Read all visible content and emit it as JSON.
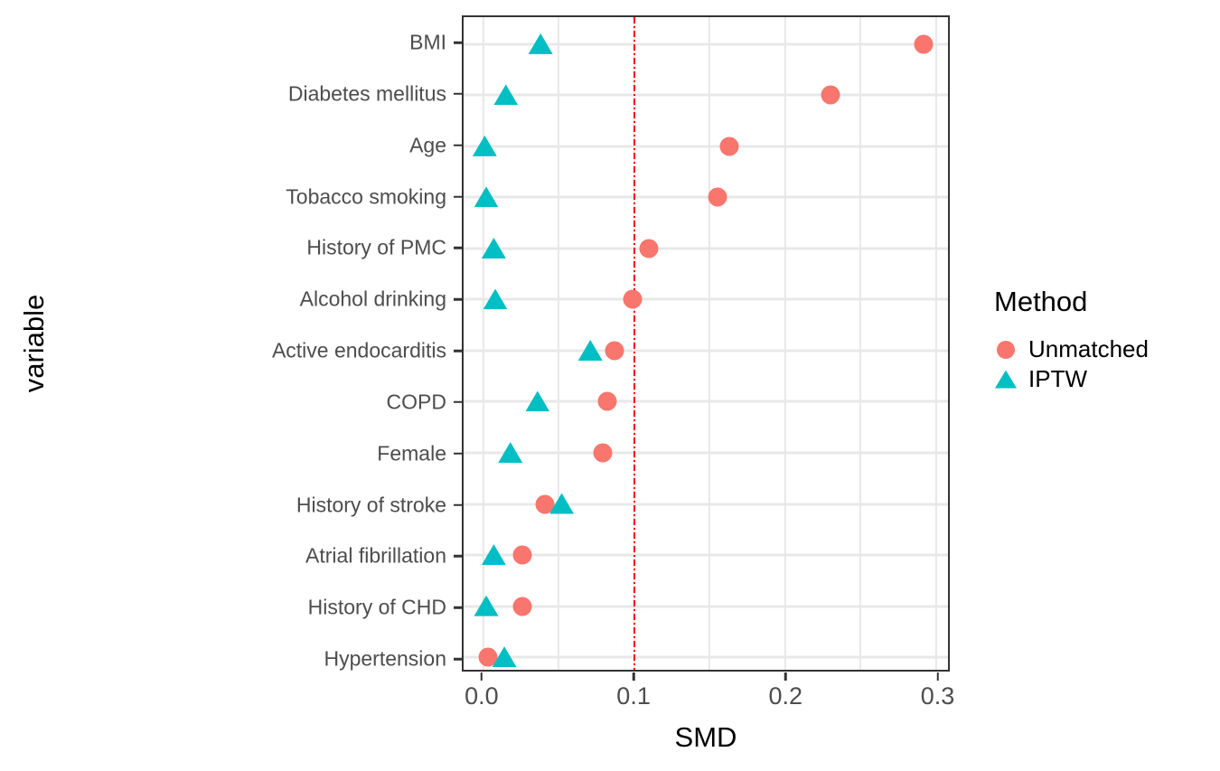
{
  "chart_data": {
    "type": "scatter",
    "variant": "covariate-balance-love-plot",
    "title": "",
    "xlabel": "SMD",
    "ylabel": "variable",
    "xlim": [
      -0.013,
      0.308
    ],
    "x_major_ticks": [
      0.0,
      0.1,
      0.2,
      0.3
    ],
    "x_tick_labels": [
      "0.0",
      "0.1",
      "0.2",
      "0.3"
    ],
    "x_gridline_step": 0.05,
    "grid": true,
    "reference_line": {
      "x": 0.1,
      "color": "#FF0000",
      "style": "dash-dot"
    },
    "categories": [
      "BMI",
      "Diabetes mellitus",
      "Age",
      "Tobacco smoking",
      "History of PMC",
      "Alcohol drinking",
      "Active endocarditis",
      "COPD",
      "Female",
      "History of stroke",
      "Atrial fibrillation",
      "History of CHD",
      "Hypertension"
    ],
    "series": [
      {
        "name": "Unmatched",
        "marker": "circle",
        "color": "#F8766D",
        "values": [
          0.292,
          0.23,
          0.163,
          0.155,
          0.11,
          0.099,
          0.087,
          0.082,
          0.079,
          0.041,
          0.026,
          0.026,
          0.003
        ]
      },
      {
        "name": "IPTW",
        "marker": "triangle",
        "color": "#00BFC4",
        "values": [
          0.038,
          0.015,
          0.001,
          0.002,
          0.007,
          0.008,
          0.071,
          0.036,
          0.018,
          0.052,
          0.007,
          0.002,
          0.014
        ]
      }
    ],
    "legend": {
      "title": "Method",
      "position": "right"
    }
  },
  "colors": {
    "grid": "#E8E8E8",
    "panel_border": "#333333",
    "axis_text": "#4D4D4D",
    "title_text": "#000000",
    "background": "#FFFFFF"
  }
}
